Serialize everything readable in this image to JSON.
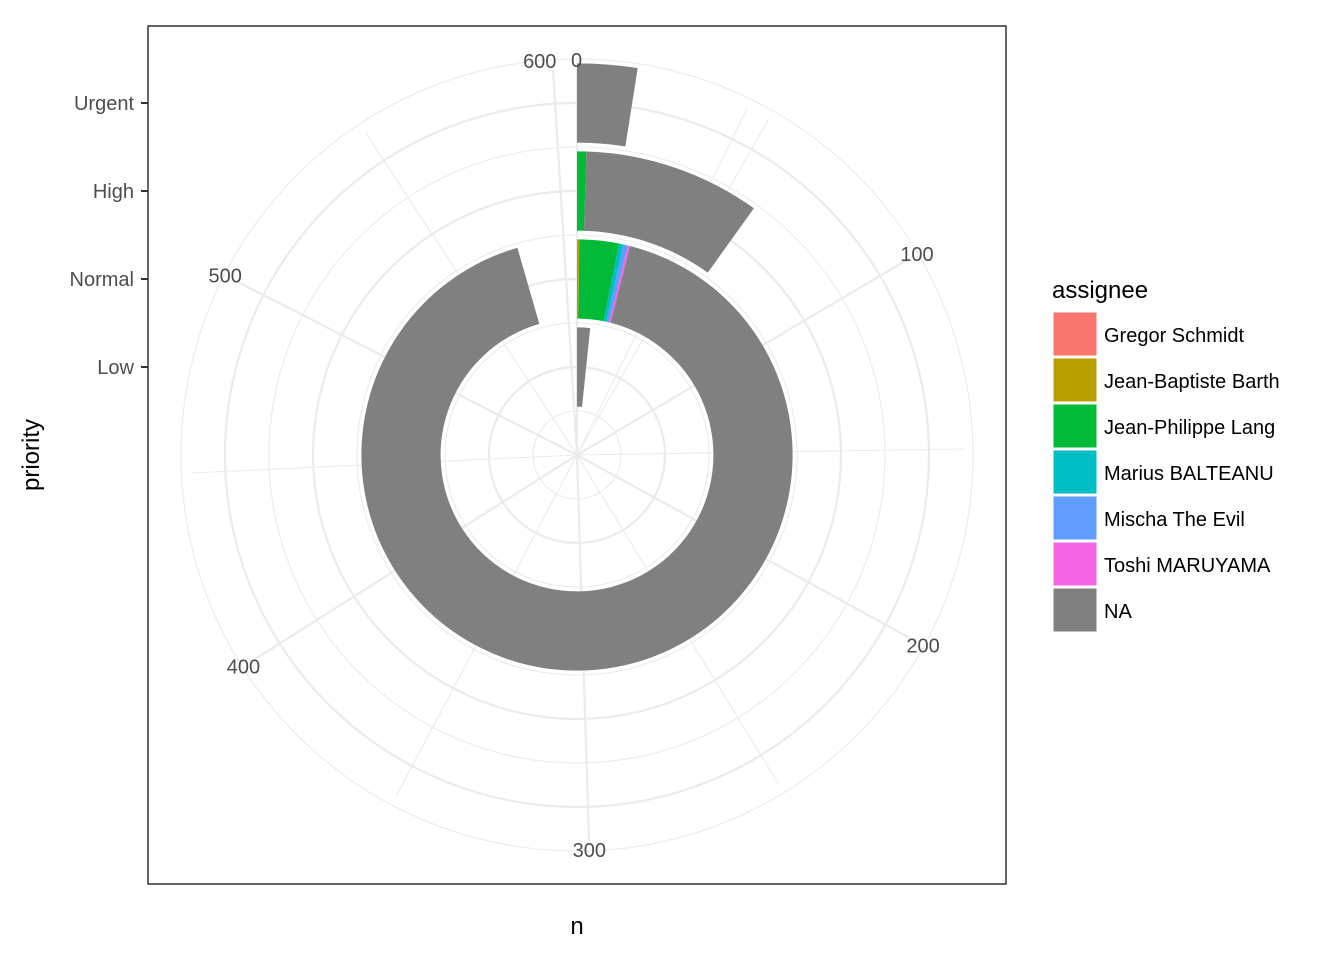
{
  "chart_data": {
    "type": "bar",
    "coord": "polar",
    "xlabel": "n",
    "ylabel": "priority",
    "categories": [
      "Low",
      "Normal",
      "High",
      "Urgent"
    ],
    "n_range": [
      0,
      606
    ],
    "n_breaks": [
      0,
      100,
      200,
      300,
      400,
      500,
      600
    ],
    "n_tick_labels": [
      "0",
      "100",
      "200",
      "300",
      "400",
      "500",
      "600"
    ],
    "legend": {
      "title": "assignee",
      "position": "right",
      "entries": [
        {
          "name": "Gregor Schmidt",
          "color": "#F8766D"
        },
        {
          "name": "Jean-Baptiste Barth",
          "color": "#B79F00"
        },
        {
          "name": "Jean-Philippe Lang",
          "color": "#00BA38"
        },
        {
          "name": "Marius BALTEANU",
          "color": "#00BFC4"
        },
        {
          "name": "Mischa The Evil",
          "color": "#619CFF"
        },
        {
          "name": "Toshi MARUYAMA",
          "color": "#F564E3"
        },
        {
          "name": "NA",
          "color": "#808080"
        }
      ]
    },
    "series": [
      {
        "name": "Gregor Schmidt",
        "values": [
          0,
          0,
          0,
          0
        ]
      },
      {
        "name": "Jean-Baptiste Barth",
        "values": [
          0,
          1,
          0,
          0
        ]
      },
      {
        "name": "Jean-Philippe Lang",
        "values": [
          0,
          18,
          3,
          0
        ]
      },
      {
        "name": "Marius BALTEANU",
        "values": [
          0,
          2,
          0,
          0
        ]
      },
      {
        "name": "Mischa The Evil",
        "values": [
          0,
          2,
          0,
          0
        ]
      },
      {
        "name": "Toshi MARUYAMA",
        "values": [
          0,
          1,
          0,
          0
        ]
      },
      {
        "name": "NA",
        "values": [
          10,
          555,
          57,
          15
        ]
      }
    ],
    "grid": true
  }
}
